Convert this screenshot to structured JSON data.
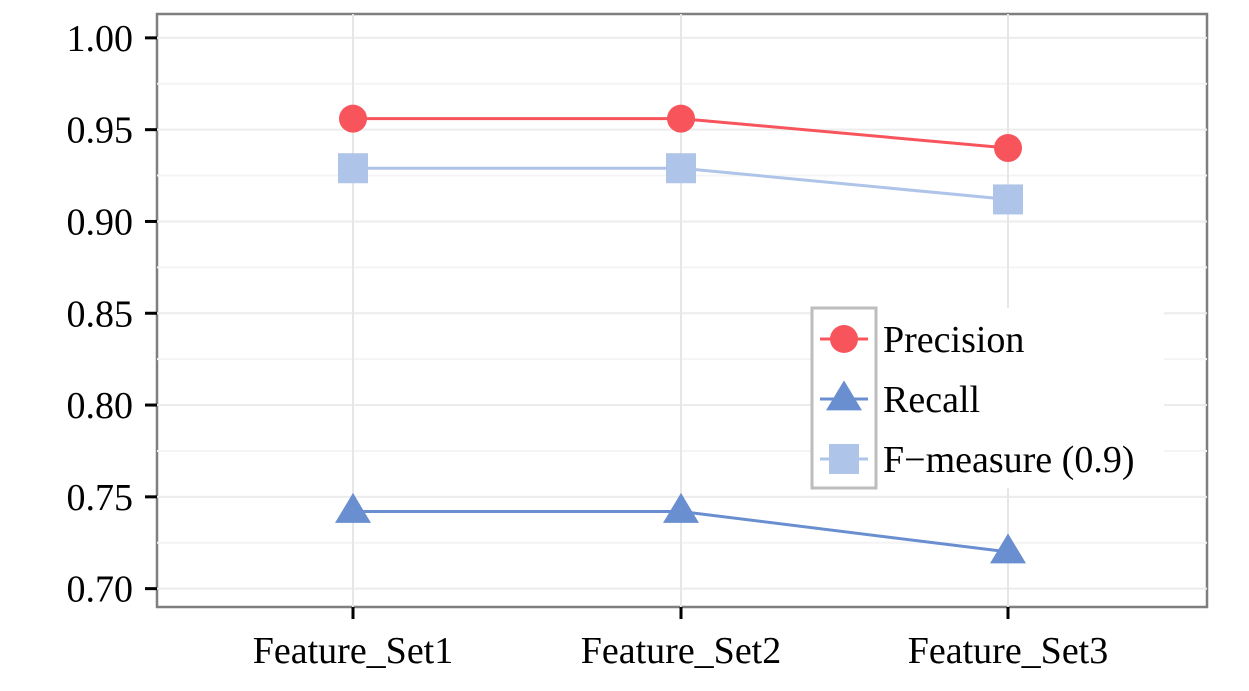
{
  "chart_data": {
    "type": "line",
    "categories": [
      "Feature_Set1",
      "Feature_Set2",
      "Feature_Set3"
    ],
    "ylim": [
      0.69,
      1.013
    ],
    "yticks": [
      "0.70",
      "0.75",
      "0.80",
      "0.85",
      "0.90",
      "0.95",
      "1.00"
    ],
    "grid": true,
    "legend_placement": "right-center",
    "series": [
      {
        "name": "Precision",
        "values": [
          0.956,
          0.956,
          0.94
        ],
        "color": "#f8545b",
        "marker": "circle"
      },
      {
        "name": "Recall",
        "values": [
          0.742,
          0.742,
          0.72
        ],
        "color": "#6a8fd0",
        "marker": "triangle"
      },
      {
        "name": "F−measure (0.9)",
        "values": [
          0.929,
          0.929,
          0.912
        ],
        "color": "#aec4e8",
        "marker": "square"
      }
    ]
  }
}
